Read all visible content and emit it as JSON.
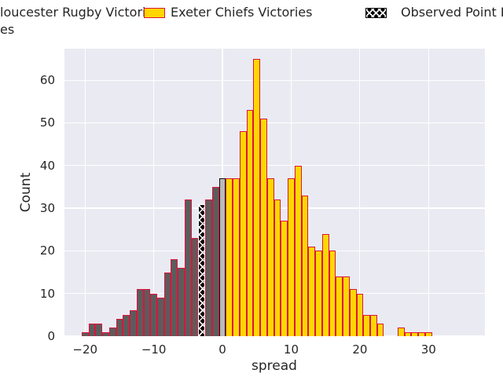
{
  "figure": {
    "background": "#ffffff",
    "plot_background": "#eaeaf2",
    "grid_color": "#ffffff",
    "text_color": "#262626"
  },
  "legend": {
    "row1": [
      {
        "id": "gloucester",
        "label": "loucester Rugby Victories"
      },
      {
        "id": "exeter",
        "label": "Exeter Chiefs Victories"
      },
      {
        "id": "observed",
        "label": "Observed Point D"
      }
    ],
    "row2_fragment": "es"
  },
  "chart_data": {
    "type": "histogram",
    "title": "",
    "xlabel": "spread",
    "ylabel": "Count",
    "xlim": [
      -23,
      38.2
    ],
    "ylim": [
      0,
      67.4
    ],
    "x_ticks": [
      -20,
      -10,
      0,
      10,
      20,
      30
    ],
    "y_ticks": [
      0,
      10,
      20,
      30,
      40,
      50,
      60
    ],
    "grid": true,
    "legend_position": "above-top",
    "bin_width": 1,
    "series_styles": {
      "gloucester": {
        "fill": "#5c5c5c",
        "edge": "#dc143c",
        "hatch": null
      },
      "exeter": {
        "fill": "#ffd700",
        "edge": "#dc143c",
        "hatch": null
      },
      "tie": {
        "fill": "#b9b9b9",
        "edge": "#111111",
        "hatch": null
      },
      "observed": {
        "fill": "#000000",
        "edge": "#ffffff",
        "hatch": "x"
      }
    },
    "bins": [
      {
        "x": -20,
        "count": 1,
        "series": "gloucester"
      },
      {
        "x": -19,
        "count": 3,
        "series": "gloucester"
      },
      {
        "x": -18,
        "count": 3,
        "series": "gloucester"
      },
      {
        "x": -17,
        "count": 1,
        "series": "gloucester"
      },
      {
        "x": -16,
        "count": 2,
        "series": "gloucester"
      },
      {
        "x": -15,
        "count": 4,
        "series": "gloucester"
      },
      {
        "x": -14,
        "count": 5,
        "series": "gloucester"
      },
      {
        "x": -13,
        "count": 6,
        "series": "gloucester"
      },
      {
        "x": -12,
        "count": 11,
        "series": "gloucester"
      },
      {
        "x": -11,
        "count": 11,
        "series": "gloucester"
      },
      {
        "x": -10,
        "count": 10,
        "series": "gloucester"
      },
      {
        "x": -9,
        "count": 9,
        "series": "gloucester"
      },
      {
        "x": -8,
        "count": 15,
        "series": "gloucester"
      },
      {
        "x": -7,
        "count": 18,
        "series": "gloucester"
      },
      {
        "x": -6,
        "count": 16,
        "series": "gloucester"
      },
      {
        "x": -5,
        "count": 32,
        "series": "gloucester"
      },
      {
        "x": -4,
        "count": 23,
        "series": "gloucester"
      },
      {
        "x": -3,
        "count": 31,
        "series": "observed"
      },
      {
        "x": -2,
        "count": 32,
        "series": "gloucester"
      },
      {
        "x": -1,
        "count": 35,
        "series": "gloucester"
      },
      {
        "x": 0,
        "count": 37,
        "series": "tie"
      },
      {
        "x": 1,
        "count": 37,
        "series": "exeter"
      },
      {
        "x": 2,
        "count": 37,
        "series": "exeter"
      },
      {
        "x": 3,
        "count": 48,
        "series": "exeter"
      },
      {
        "x": 4,
        "count": 53,
        "series": "exeter"
      },
      {
        "x": 5,
        "count": 65,
        "series": "exeter"
      },
      {
        "x": 6,
        "count": 51,
        "series": "exeter"
      },
      {
        "x": 7,
        "count": 37,
        "series": "exeter"
      },
      {
        "x": 8,
        "count": 32,
        "series": "exeter"
      },
      {
        "x": 9,
        "count": 27,
        "series": "exeter"
      },
      {
        "x": 10,
        "count": 37,
        "series": "exeter"
      },
      {
        "x": 11,
        "count": 40,
        "series": "exeter"
      },
      {
        "x": 12,
        "count": 33,
        "series": "exeter"
      },
      {
        "x": 13,
        "count": 21,
        "series": "exeter"
      },
      {
        "x": 14,
        "count": 20,
        "series": "exeter"
      },
      {
        "x": 15,
        "count": 24,
        "series": "exeter"
      },
      {
        "x": 16,
        "count": 20,
        "series": "exeter"
      },
      {
        "x": 17,
        "count": 14,
        "series": "exeter"
      },
      {
        "x": 18,
        "count": 14,
        "series": "exeter"
      },
      {
        "x": 19,
        "count": 11,
        "series": "exeter"
      },
      {
        "x": 20,
        "count": 10,
        "series": "exeter"
      },
      {
        "x": 21,
        "count": 5,
        "series": "exeter"
      },
      {
        "x": 22,
        "count": 5,
        "series": "exeter"
      },
      {
        "x": 23,
        "count": 3,
        "series": "exeter"
      },
      {
        "x": 24,
        "count": 0,
        "series": "exeter"
      },
      {
        "x": 25,
        "count": 0,
        "series": "exeter"
      },
      {
        "x": 26,
        "count": 2,
        "series": "exeter"
      },
      {
        "x": 27,
        "count": 1,
        "series": "exeter"
      },
      {
        "x": 28,
        "count": 1,
        "series": "exeter"
      },
      {
        "x": 29,
        "count": 1,
        "series": "exeter"
      },
      {
        "x": 30,
        "count": 1,
        "series": "exeter"
      }
    ]
  }
}
